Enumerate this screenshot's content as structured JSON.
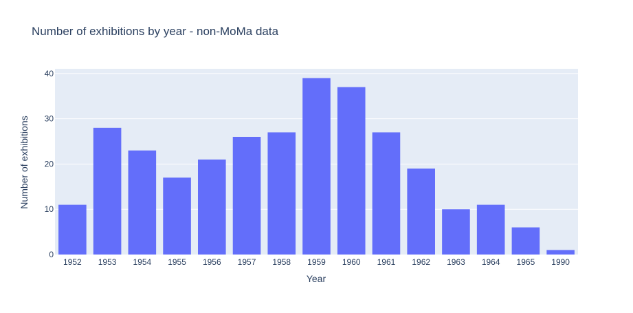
{
  "chart_data": {
    "type": "bar",
    "title": "Number of exhibitions by year - non-MoMa data",
    "xlabel": "Year",
    "ylabel": "Number of exhibitions",
    "categories": [
      "1952",
      "1953",
      "1954",
      "1955",
      "1956",
      "1957",
      "1958",
      "1959",
      "1960",
      "1961",
      "1962",
      "1963",
      "1964",
      "1965",
      "1990"
    ],
    "values": [
      11,
      28,
      23,
      17,
      21,
      26,
      27,
      39,
      37,
      27,
      19,
      10,
      11,
      6,
      1
    ],
    "ylim": [
      0,
      41.05
    ],
    "yticks": [
      0,
      10,
      20,
      30,
      40
    ],
    "grid": true,
    "legend": "none"
  },
  "colors": {
    "bar": "#636efa",
    "plot_bg": "#e5ecf6",
    "grid": "#ffffff",
    "text": "#2a3f5f"
  }
}
